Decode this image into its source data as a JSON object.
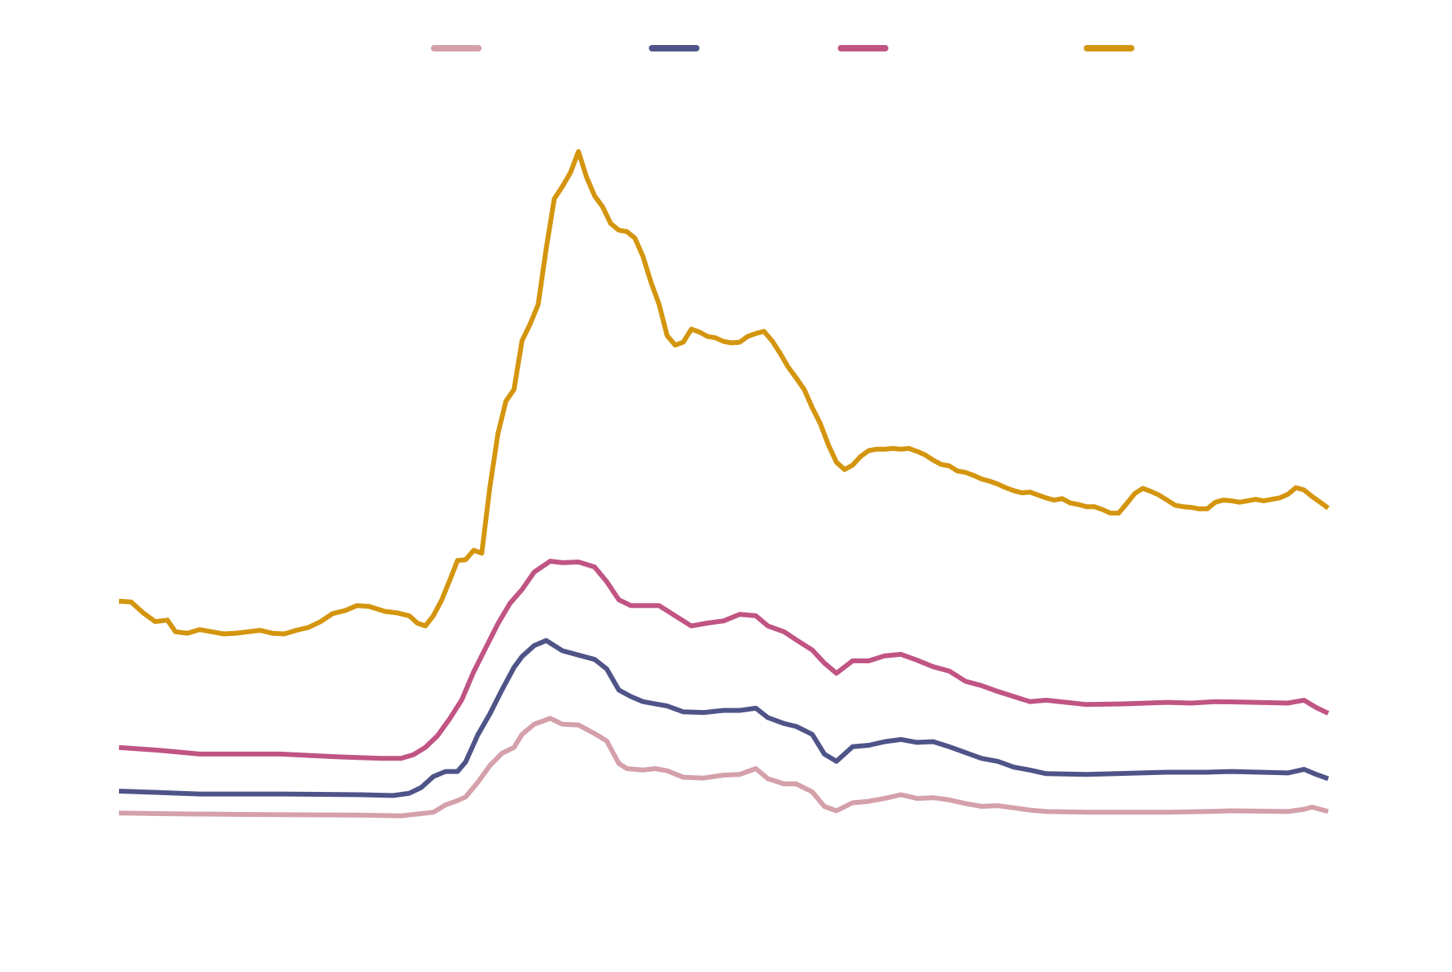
{
  "chart_data": {
    "type": "line",
    "title": "",
    "xlabel": "",
    "ylabel": "",
    "x_range": [
      0,
      300
    ],
    "ylim": [
      0,
      100
    ],
    "grid": false,
    "legend_placement": "top",
    "series": [
      {
        "color": "#d4a0aa",
        "points": [
          [
            0,
            6.5
          ],
          [
            12,
            6.4
          ],
          [
            30,
            6.3
          ],
          [
            60,
            6.2
          ],
          [
            70,
            6.1
          ],
          [
            78,
            6.6
          ],
          [
            81,
            7.6
          ],
          [
            84,
            8.2
          ],
          [
            86,
            8.7
          ],
          [
            89,
            10.7
          ],
          [
            92,
            13.0
          ],
          [
            95,
            14.7
          ],
          [
            98,
            15.5
          ],
          [
            100,
            17.3
          ],
          [
            103,
            18.7
          ],
          [
            107,
            19.5
          ],
          [
            110,
            18.7
          ],
          [
            114,
            18.6
          ],
          [
            118,
            17.4
          ],
          [
            121,
            16.4
          ],
          [
            124,
            13.3
          ],
          [
            126,
            12.6
          ],
          [
            130,
            12.4
          ],
          [
            133,
            12.6
          ],
          [
            136,
            12.3
          ],
          [
            140,
            11.4
          ],
          [
            145,
            11.3
          ],
          [
            150,
            11.7
          ],
          [
            154,
            11.8
          ],
          [
            158,
            12.6
          ],
          [
            161,
            11.2
          ],
          [
            165,
            10.5
          ],
          [
            168,
            10.5
          ],
          [
            172,
            9.4
          ],
          [
            175,
            7.4
          ],
          [
            178,
            6.8
          ],
          [
            182,
            7.9
          ],
          [
            186,
            8.1
          ],
          [
            190,
            8.5
          ],
          [
            194,
            9.0
          ],
          [
            198,
            8.5
          ],
          [
            202,
            8.6
          ],
          [
            206,
            8.3
          ],
          [
            210,
            7.8
          ],
          [
            214,
            7.4
          ],
          [
            218,
            7.5
          ],
          [
            222,
            7.2
          ],
          [
            226,
            6.9
          ],
          [
            230,
            6.7
          ],
          [
            240,
            6.6
          ],
          [
            260,
            6.6
          ],
          [
            270,
            6.7
          ],
          [
            276,
            6.8
          ],
          [
            290,
            6.7
          ],
          [
            294,
            7.0
          ],
          [
            296,
            7.3
          ],
          [
            298,
            7.0
          ],
          [
            300,
            6.7
          ]
        ]
      },
      {
        "color": "#4e5487",
        "points": [
          [
            0,
            9.5
          ],
          [
            10,
            9.3
          ],
          [
            20,
            9.1
          ],
          [
            40,
            9.1
          ],
          [
            60,
            9.0
          ],
          [
            68,
            8.9
          ],
          [
            72,
            9.2
          ],
          [
            75,
            10.0
          ],
          [
            78,
            11.5
          ],
          [
            81,
            12.2
          ],
          [
            84,
            12.2
          ],
          [
            86,
            13.5
          ],
          [
            89,
            17.2
          ],
          [
            92,
            20.1
          ],
          [
            95,
            23.4
          ],
          [
            98,
            26.5
          ],
          [
            100,
            28.0
          ],
          [
            103,
            29.5
          ],
          [
            106,
            30.2
          ],
          [
            110,
            28.8
          ],
          [
            114,
            28.2
          ],
          [
            118,
            27.6
          ],
          [
            121,
            26.3
          ],
          [
            124,
            23.4
          ],
          [
            127,
            22.5
          ],
          [
            130,
            21.8
          ],
          [
            133,
            21.5
          ],
          [
            136,
            21.2
          ],
          [
            140,
            20.4
          ],
          [
            145,
            20.3
          ],
          [
            150,
            20.6
          ],
          [
            154,
            20.6
          ],
          [
            158,
            20.9
          ],
          [
            161,
            19.6
          ],
          [
            165,
            18.8
          ],
          [
            168,
            18.4
          ],
          [
            172,
            17.3
          ],
          [
            175,
            14.6
          ],
          [
            178,
            13.6
          ],
          [
            182,
            15.6
          ],
          [
            186,
            15.8
          ],
          [
            190,
            16.3
          ],
          [
            194,
            16.6
          ],
          [
            198,
            16.2
          ],
          [
            202,
            16.3
          ],
          [
            206,
            15.6
          ],
          [
            210,
            14.8
          ],
          [
            214,
            14.0
          ],
          [
            218,
            13.6
          ],
          [
            222,
            12.8
          ],
          [
            226,
            12.4
          ],
          [
            230,
            11.9
          ],
          [
            240,
            11.8
          ],
          [
            260,
            12.1
          ],
          [
            270,
            12.1
          ],
          [
            276,
            12.2
          ],
          [
            290,
            12.0
          ],
          [
            294,
            12.5
          ],
          [
            297,
            11.8
          ],
          [
            300,
            11.2
          ]
        ]
      },
      {
        "color": "#c05483",
        "points": [
          [
            0,
            15.5
          ],
          [
            10,
            15.1
          ],
          [
            20,
            14.6
          ],
          [
            40,
            14.6
          ],
          [
            55,
            14.2
          ],
          [
            65,
            14.0
          ],
          [
            70,
            14.0
          ],
          [
            73,
            14.5
          ],
          [
            76,
            15.5
          ],
          [
            79,
            17.1
          ],
          [
            82,
            19.4
          ],
          [
            85,
            22.0
          ],
          [
            88,
            25.9
          ],
          [
            91,
            29.2
          ],
          [
            94,
            32.5
          ],
          [
            97,
            35.3
          ],
          [
            100,
            37.2
          ],
          [
            103,
            39.6
          ],
          [
            107,
            41.1
          ],
          [
            110,
            40.9
          ],
          [
            114,
            41.0
          ],
          [
            118,
            40.3
          ],
          [
            121,
            38.3
          ],
          [
            124,
            35.8
          ],
          [
            127,
            35.0
          ],
          [
            130,
            35.0
          ],
          [
            134,
            35.0
          ],
          [
            138,
            33.6
          ],
          [
            142,
            32.2
          ],
          [
            146,
            32.6
          ],
          [
            150,
            32.9
          ],
          [
            154,
            33.8
          ],
          [
            158,
            33.6
          ],
          [
            161,
            32.2
          ],
          [
            165,
            31.4
          ],
          [
            168,
            30.3
          ],
          [
            172,
            28.9
          ],
          [
            175,
            27.1
          ],
          [
            178,
            25.7
          ],
          [
            182,
            27.4
          ],
          [
            186,
            27.4
          ],
          [
            190,
            28.1
          ],
          [
            194,
            28.3
          ],
          [
            198,
            27.5
          ],
          [
            202,
            26.6
          ],
          [
            206,
            26.0
          ],
          [
            210,
            24.6
          ],
          [
            214,
            24.0
          ],
          [
            218,
            23.2
          ],
          [
            222,
            22.5
          ],
          [
            226,
            21.8
          ],
          [
            230,
            22.0
          ],
          [
            240,
            21.4
          ],
          [
            250,
            21.5
          ],
          [
            260,
            21.7
          ],
          [
            266,
            21.6
          ],
          [
            272,
            21.8
          ],
          [
            282,
            21.7
          ],
          [
            290,
            21.6
          ],
          [
            294,
            22.0
          ],
          [
            297,
            21.0
          ],
          [
            300,
            20.2
          ]
        ]
      },
      {
        "color": "#d4950e",
        "points": [
          [
            0,
            35.6
          ],
          [
            3,
            35.5
          ],
          [
            6,
            34.0
          ],
          [
            9,
            32.8
          ],
          [
            12,
            33.0
          ],
          [
            14,
            31.4
          ],
          [
            17,
            31.2
          ],
          [
            20,
            31.7
          ],
          [
            23,
            31.4
          ],
          [
            26,
            31.1
          ],
          [
            29,
            31.2
          ],
          [
            32,
            31.4
          ],
          [
            35,
            31.6
          ],
          [
            38,
            31.2
          ],
          [
            41,
            31.1
          ],
          [
            44,
            31.6
          ],
          [
            47,
            32.0
          ],
          [
            50,
            32.8
          ],
          [
            53,
            33.9
          ],
          [
            56,
            34.3
          ],
          [
            59,
            35.0
          ],
          [
            62,
            34.9
          ],
          [
            66,
            34.2
          ],
          [
            69,
            34.0
          ],
          [
            72,
            33.6
          ],
          [
            74,
            32.6
          ],
          [
            76,
            32.2
          ],
          [
            78,
            33.6
          ],
          [
            80,
            35.7
          ],
          [
            82,
            38.4
          ],
          [
            84,
            41.2
          ],
          [
            86,
            41.3
          ],
          [
            88,
            42.6
          ],
          [
            90,
            42.2
          ],
          [
            92,
            51.2
          ],
          [
            94,
            58.6
          ],
          [
            96,
            63.1
          ],
          [
            98,
            64.7
          ],
          [
            100,
            71.4
          ],
          [
            102,
            73.7
          ],
          [
            104,
            76.4
          ],
          [
            106,
            84.1
          ],
          [
            108,
            90.9
          ],
          [
            110,
            92.6
          ],
          [
            112,
            94.5
          ],
          [
            114,
            97.4
          ],
          [
            116,
            93.9
          ],
          [
            118,
            91.3
          ],
          [
            120,
            89.8
          ],
          [
            122,
            87.5
          ],
          [
            124,
            86.6
          ],
          [
            126,
            86.4
          ],
          [
            128,
            85.5
          ],
          [
            130,
            83.0
          ],
          [
            132,
            79.4
          ],
          [
            134,
            76.4
          ],
          [
            136,
            72.1
          ],
          [
            138,
            70.8
          ],
          [
            140,
            71.2
          ],
          [
            142,
            73.0
          ],
          [
            144,
            72.6
          ],
          [
            146,
            72.0
          ],
          [
            148,
            71.8
          ],
          [
            150,
            71.3
          ],
          [
            152,
            71.1
          ],
          [
            154,
            71.2
          ],
          [
            156,
            72.0
          ],
          [
            158,
            72.4
          ],
          [
            160,
            72.7
          ],
          [
            162,
            71.4
          ],
          [
            164,
            69.7
          ],
          [
            166,
            67.8
          ],
          [
            168,
            66.3
          ],
          [
            170,
            64.7
          ],
          [
            172,
            62.2
          ],
          [
            174,
            60.0
          ],
          [
            176,
            57.1
          ],
          [
            178,
            54.7
          ],
          [
            180,
            53.7
          ],
          [
            182,
            54.3
          ],
          [
            184,
            55.5
          ],
          [
            186,
            56.3
          ],
          [
            188,
            56.5
          ],
          [
            190,
            56.5
          ],
          [
            192,
            56.6
          ],
          [
            194,
            56.5
          ],
          [
            196,
            56.6
          ],
          [
            198,
            56.2
          ],
          [
            200,
            55.7
          ],
          [
            202,
            55.0
          ],
          [
            204,
            54.4
          ],
          [
            206,
            54.2
          ],
          [
            208,
            53.5
          ],
          [
            210,
            53.3
          ],
          [
            212,
            52.9
          ],
          [
            214,
            52.4
          ],
          [
            216,
            52.1
          ],
          [
            218,
            51.7
          ],
          [
            220,
            51.2
          ],
          [
            222,
            50.8
          ],
          [
            224,
            50.5
          ],
          [
            226,
            50.6
          ],
          [
            228,
            50.2
          ],
          [
            230,
            49.8
          ],
          [
            232,
            49.5
          ],
          [
            234,
            49.7
          ],
          [
            236,
            49.1
          ],
          [
            238,
            48.9
          ],
          [
            240,
            48.6
          ],
          [
            242,
            48.6
          ],
          [
            244,
            48.2
          ],
          [
            246,
            47.7
          ],
          [
            248,
            47.7
          ],
          [
            250,
            49.0
          ],
          [
            252,
            50.4
          ],
          [
            254,
            51.1
          ],
          [
            256,
            50.7
          ],
          [
            258,
            50.2
          ],
          [
            260,
            49.5
          ],
          [
            262,
            48.8
          ],
          [
            264,
            48.6
          ],
          [
            266,
            48.5
          ],
          [
            268,
            48.3
          ],
          [
            270,
            48.3
          ],
          [
            272,
            49.2
          ],
          [
            274,
            49.5
          ],
          [
            276,
            49.4
          ],
          [
            278,
            49.2
          ],
          [
            280,
            49.4
          ],
          [
            282,
            49.6
          ],
          [
            284,
            49.4
          ],
          [
            286,
            49.6
          ],
          [
            288,
            49.8
          ],
          [
            290,
            50.3
          ],
          [
            292,
            51.2
          ],
          [
            294,
            50.9
          ],
          [
            296,
            50.0
          ],
          [
            298,
            49.2
          ],
          [
            300,
            48.4
          ]
        ]
      }
    ]
  }
}
